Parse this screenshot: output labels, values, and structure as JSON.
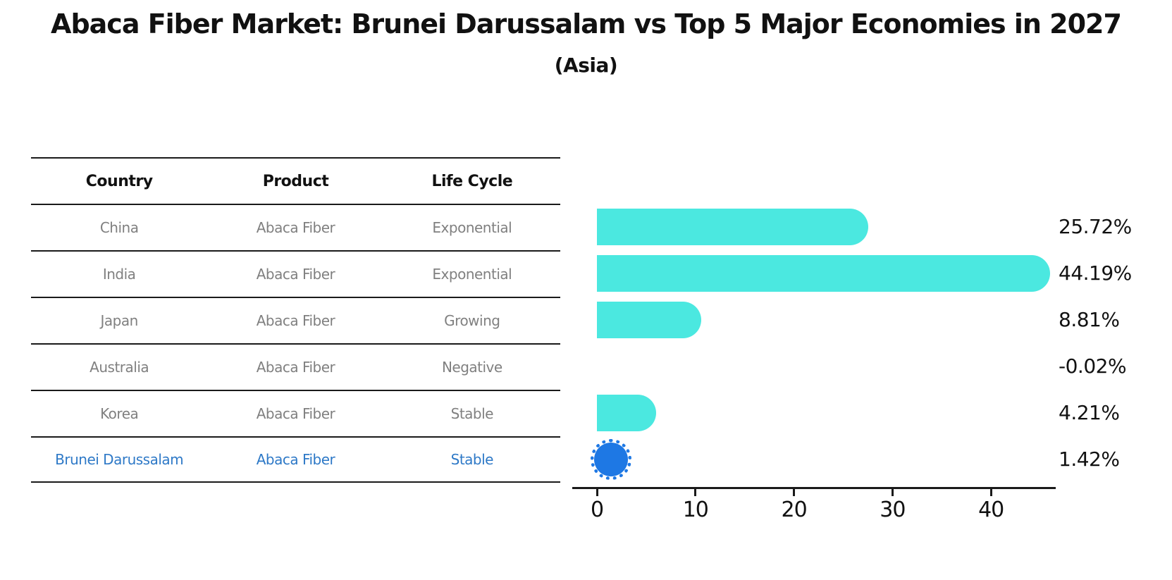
{
  "title": "Abaca Fiber Market: Brunei Darussalam vs Top 5 Major Economies in 2027",
  "subtitle": "(Asia)",
  "table": {
    "headers": [
      "Country",
      "Product",
      "Life Cycle"
    ],
    "rows": [
      {
        "country": "China",
        "product": "Abaca Fiber",
        "life_cycle": "Exponential",
        "highlight": false
      },
      {
        "country": "India",
        "product": "Abaca Fiber",
        "life_cycle": "Exponential",
        "highlight": false
      },
      {
        "country": "Japan",
        "product": "Abaca Fiber",
        "life_cycle": "Growing",
        "highlight": false
      },
      {
        "country": "Australia",
        "product": "Abaca Fiber",
        "life_cycle": "Negative",
        "highlight": false
      },
      {
        "country": "Korea",
        "product": "Abaca Fiber",
        "life_cycle": "Stable",
        "highlight": false
      },
      {
        "country": "Brunei Darussalam",
        "product": "Abaca Fiber",
        "life_cycle": "Stable",
        "highlight": true
      }
    ]
  },
  "chart_data": {
    "type": "bar",
    "orientation": "horizontal",
    "categories": [
      "China",
      "India",
      "Japan",
      "Australia",
      "Korea",
      "Brunei Darussalam"
    ],
    "values": [
      25.72,
      44.19,
      8.81,
      -0.02,
      4.21,
      1.42
    ],
    "value_labels": [
      "25.72%",
      "44.19%",
      "8.81%",
      "-0.02%",
      "4.21%",
      "1.42%"
    ],
    "x_ticks": [
      0,
      10,
      20,
      30,
      40
    ],
    "xlim": [
      0,
      46.5
    ],
    "highlight_index": 5,
    "grid": false,
    "legend": false,
    "title": "Abaca Fiber Market: Brunei Darussalam vs Top 5 Major Economies in 2027 (Asia)"
  },
  "colors": {
    "bar": "#4BE8E0",
    "highlight_bar": "#1E78E4",
    "highlight_text": "#2E79C7",
    "gray_text": "#808080",
    "line": "#1a1a1a"
  }
}
